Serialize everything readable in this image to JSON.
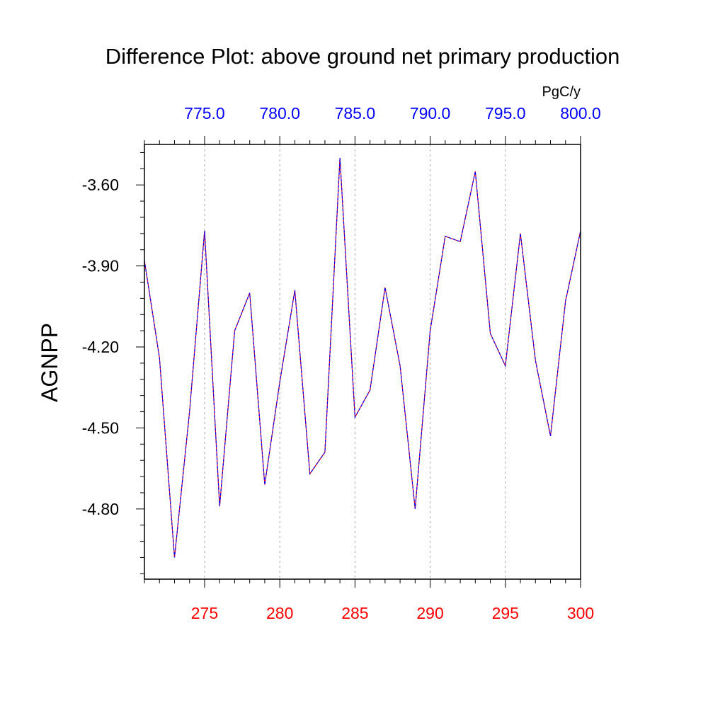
{
  "chart_data": {
    "type": "line",
    "title": "Difference Plot: above ground net primary production",
    "ylabel": "AGNPP",
    "units_label": "PgC/y",
    "xlim": [
      271,
      300
    ],
    "ylim": [
      -5.06,
      -3.45
    ],
    "top_xlim": [
      771,
      800
    ],
    "grid": "vertical dashed at major x ticks",
    "colors": {
      "bottom_axis_text": "#ff0000",
      "top_axis_text": "#0000ff",
      "series_a": "#ff0000",
      "series_b": "#0000ff",
      "grid": "#aaaaaa"
    },
    "x_ticks": [
      275,
      280,
      285,
      290,
      295,
      300
    ],
    "x_tick_labels": [
      "275",
      "280",
      "285",
      "290",
      "295",
      "300"
    ],
    "top_x_ticks": [
      775,
      780,
      785,
      790,
      795,
      800
    ],
    "top_x_tick_labels": [
      "775.0",
      "780.0",
      "785.0",
      "790.0",
      "795.0",
      "800.0"
    ],
    "y_ticks": [
      -3.6,
      -3.9,
      -4.2,
      -4.5,
      -4.8
    ],
    "y_tick_labels": [
      "-3.60",
      "-3.90",
      "-4.20",
      "-4.50",
      "-4.80"
    ],
    "x": [
      271,
      272,
      273,
      274,
      275,
      276,
      277,
      278,
      279,
      280,
      281,
      282,
      283,
      284,
      285,
      286,
      287,
      288,
      289,
      290,
      291,
      292,
      293,
      294,
      295,
      296,
      297,
      298,
      299,
      300
    ],
    "series": [
      {
        "color": "#ff0000",
        "values": [
          -3.88,
          -4.24,
          -4.98,
          -4.44,
          -3.77,
          -4.79,
          -4.14,
          -4.0,
          -4.71,
          -4.33,
          -3.99,
          -4.67,
          -4.59,
          -3.5,
          -4.46,
          -4.36,
          -3.98,
          -4.27,
          -4.8,
          -4.14,
          -3.79,
          -3.81,
          -3.55,
          -4.15,
          -4.27,
          -3.78,
          -4.25,
          -4.53,
          -4.03,
          -3.77
        ]
      },
      {
        "color": "#0000ff",
        "values": [
          -3.88,
          -4.24,
          -4.98,
          -4.44,
          -3.77,
          -4.79,
          -4.14,
          -4.0,
          -4.71,
          -4.33,
          -3.99,
          -4.67,
          -4.59,
          -3.5,
          -4.46,
          -4.36,
          -3.98,
          -4.27,
          -4.8,
          -4.14,
          -3.79,
          -3.81,
          -3.55,
          -4.15,
          -4.27,
          -3.78,
          -4.25,
          -4.53,
          -4.03,
          -3.77
        ]
      }
    ]
  }
}
